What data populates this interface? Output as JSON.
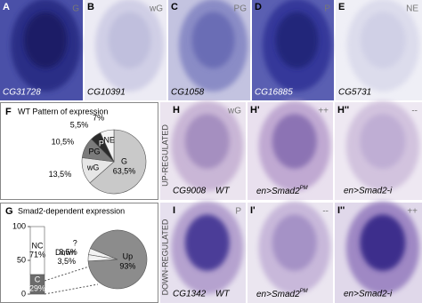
{
  "panels": [
    {
      "letter": "A",
      "tag": "G",
      "gene": "CG31728"
    },
    {
      "letter": "B",
      "tag": "wG",
      "gene": "CG10391"
    },
    {
      "letter": "C",
      "tag": "PG",
      "gene": "CG1058"
    },
    {
      "letter": "D",
      "tag": "P",
      "gene": "CG16885"
    },
    {
      "letter": "E",
      "tag": "NE",
      "gene": "CG5731"
    }
  ],
  "h_row": {
    "side_label": "UP-REGULATED",
    "panels": [
      {
        "letter": "H",
        "tag": "wG",
        "gene": "CG9008",
        "condition": "WT"
      },
      {
        "letter": "H'",
        "tag": "++",
        "condition": {
          "base": "en>Smad2",
          "sup": "PM"
        }
      },
      {
        "letter": "H''",
        "tag": "--",
        "condition": "en>Smad2-i"
      }
    ]
  },
  "i_row": {
    "side_label": "DOWN-REGULATED",
    "panels": [
      {
        "letter": "I",
        "tag": "P",
        "gene": "CG1342",
        "condition": "WT"
      },
      {
        "letter": "I'",
        "tag": "--",
        "condition": {
          "base": "en>Smad2",
          "sup": "PM"
        }
      },
      {
        "letter": "I''",
        "tag": "++",
        "condition": "en>Smad2-i"
      }
    ]
  },
  "chart_data": [
    {
      "type": "pie",
      "panel_letter": "F",
      "title": "WT Pattern of expression",
      "categories": [
        "G",
        "wG",
        "PG",
        "P",
        "NE"
      ],
      "values": [
        63.5,
        13.5,
        10.5,
        5.5,
        7
      ],
      "value_labels": [
        "63,5%",
        "13,5%",
        "10,5%",
        "5,5%",
        "7%"
      ],
      "colors": [
        "#c9c9c9",
        "#e6e6e6",
        "#7b7b7b",
        "#2b2b2b",
        "#f4f4f4"
      ]
    },
    {
      "type": "bar",
      "panel_letter": "G",
      "title": "Smad2-dependent expression",
      "stacked": true,
      "categories": [
        null
      ],
      "series": [
        {
          "name": "C",
          "color": "#6b6b6b",
          "values": [
            29
          ],
          "value_labels": [
            "29%"
          ]
        },
        {
          "name": "NC",
          "color": "#ffffff",
          "values": [
            71
          ],
          "value_labels": [
            "71%"
          ]
        }
      ],
      "ylim": [
        0,
        100
      ],
      "yticks": [
        0,
        50,
        100
      ]
    },
    {
      "type": "pie",
      "categories": [
        "Up",
        "?",
        "Down"
      ],
      "values": [
        93,
        3.5,
        3.5
      ],
      "value_labels": [
        "93%",
        "3,5%",
        "3,5%"
      ],
      "colors": [
        "#8c8c8c",
        "#f2f2f2",
        "#f2f2f2"
      ]
    }
  ]
}
